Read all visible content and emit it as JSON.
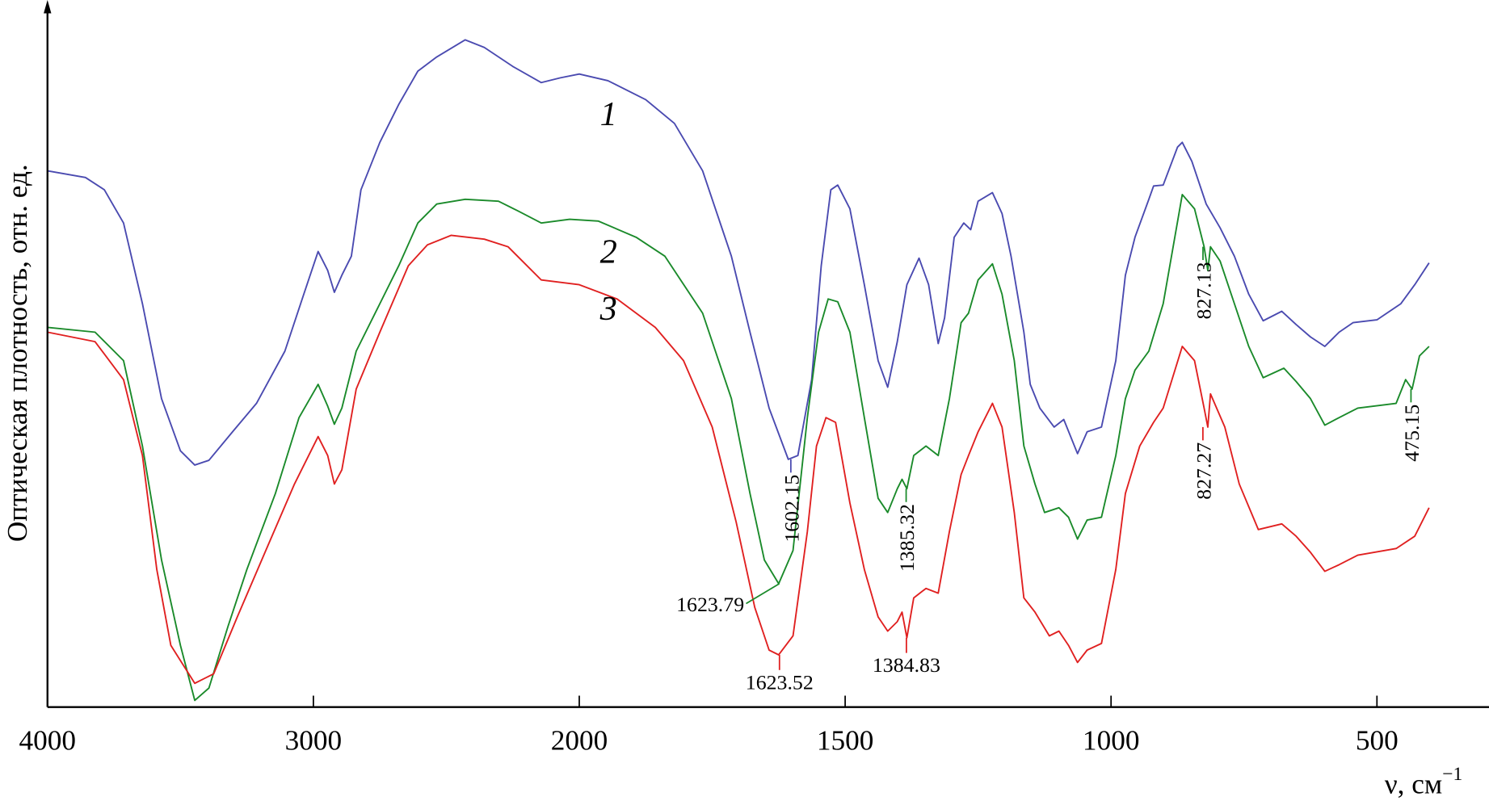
{
  "chart_data": {
    "type": "line",
    "title": "",
    "xlabel": "ν, см",
    "xlabel_sup": "−1",
    "ylabel": "Оптическая плотность, отн. ед.",
    "xlim": [
      4000,
      400
    ],
    "xaxis_break_at": 2000,
    "ylim": [
      0,
      74.5
    ],
    "grid": false,
    "x_ticks": [
      4000,
      3000,
      2000,
      1500,
      1000,
      500
    ],
    "x_tick_labels": [
      "4000",
      "3000",
      "2000",
      "1500",
      "1000",
      "500"
    ],
    "series": [
      {
        "name": "1",
        "color": "#4a4ab0",
        "points": [
          [
            4000,
            56.5
          ],
          [
            3857,
            55.8
          ],
          [
            3786,
            54.5
          ],
          [
            3714,
            51
          ],
          [
            3643,
            42.5
          ],
          [
            3571,
            32.5
          ],
          [
            3500,
            27
          ],
          [
            3446,
            25.5
          ],
          [
            3393,
            26
          ],
          [
            3304,
            29
          ],
          [
            3214,
            32
          ],
          [
            3107,
            37.5
          ],
          [
            3036,
            43.5
          ],
          [
            2982,
            48
          ],
          [
            2946,
            46
          ],
          [
            2921,
            43.7
          ],
          [
            2893,
            45.5
          ],
          [
            2857,
            47.5
          ],
          [
            2821,
            54.5
          ],
          [
            2750,
            59.5
          ],
          [
            2679,
            63.5
          ],
          [
            2607,
            67
          ],
          [
            2536,
            68.5
          ],
          [
            2429,
            70.3
          ],
          [
            2357,
            69.5
          ],
          [
            2250,
            67.5
          ],
          [
            2143,
            65.8
          ],
          [
            2071,
            66.3
          ],
          [
            2000,
            66.7
          ],
          [
            1946,
            66
          ],
          [
            1875,
            64
          ],
          [
            1821,
            61.5
          ],
          [
            1768,
            56.5
          ],
          [
            1714,
            47.5
          ],
          [
            1679,
            39.5
          ],
          [
            1643,
            31.5
          ],
          [
            1607,
            26.1
          ],
          [
            1589,
            26.5
          ],
          [
            1563,
            34.5
          ],
          [
            1545,
            46.5
          ],
          [
            1527,
            54.5
          ],
          [
            1514,
            55
          ],
          [
            1491,
            52.5
          ],
          [
            1464,
            44.5
          ],
          [
            1438,
            36.5
          ],
          [
            1420,
            33.7
          ],
          [
            1402,
            38.5
          ],
          [
            1384,
            44.5
          ],
          [
            1361,
            47.3
          ],
          [
            1343,
            44.5
          ],
          [
            1325,
            38.3
          ],
          [
            1313,
            41
          ],
          [
            1295,
            49.5
          ],
          [
            1277,
            51
          ],
          [
            1264,
            50.3
          ],
          [
            1250,
            53.3
          ],
          [
            1223,
            54.2
          ],
          [
            1205,
            52
          ],
          [
            1188,
            47.5
          ],
          [
            1164,
            39.5
          ],
          [
            1152,
            34
          ],
          [
            1134,
            31.5
          ],
          [
            1107,
            29.5
          ],
          [
            1089,
            30.3
          ],
          [
            1063,
            26.7
          ],
          [
            1045,
            29
          ],
          [
            1018,
            29.5
          ],
          [
            991,
            36.5
          ],
          [
            973,
            45.5
          ],
          [
            955,
            49.5
          ],
          [
            929,
            53.5
          ],
          [
            920,
            54.9
          ],
          [
            902,
            55
          ],
          [
            875,
            59
          ],
          [
            866,
            59.5
          ],
          [
            848,
            57.5
          ],
          [
            821,
            53
          ],
          [
            795,
            50.5
          ],
          [
            768,
            47.5
          ],
          [
            741,
            43.5
          ],
          [
            714,
            40.7
          ],
          [
            679,
            41.7
          ],
          [
            652,
            40.3
          ],
          [
            625,
            39
          ],
          [
            598,
            38
          ],
          [
            571,
            39.5
          ],
          [
            545,
            40.5
          ],
          [
            500,
            40.8
          ],
          [
            455,
            42.5
          ],
          [
            429,
            44.5
          ],
          [
            402,
            46.8
          ]
        ]
      },
      {
        "name": "2",
        "color": "#1a8a2a",
        "points": [
          [
            4000,
            40
          ],
          [
            3821,
            39.5
          ],
          [
            3714,
            36.5
          ],
          [
            3643,
            27.5
          ],
          [
            3571,
            15.5
          ],
          [
            3500,
            6.5
          ],
          [
            3446,
            0.7
          ],
          [
            3393,
            2
          ],
          [
            3321,
            8.5
          ],
          [
            3250,
            14.5
          ],
          [
            3143,
            22.5
          ],
          [
            3054,
            30.5
          ],
          [
            2982,
            34
          ],
          [
            2946,
            31.7
          ],
          [
            2921,
            29.8
          ],
          [
            2893,
            31.5
          ],
          [
            2839,
            37.5
          ],
          [
            2750,
            42.5
          ],
          [
            2679,
            46.5
          ],
          [
            2607,
            51
          ],
          [
            2536,
            53
          ],
          [
            2429,
            53.5
          ],
          [
            2304,
            53.3
          ],
          [
            2232,
            52.3
          ],
          [
            2143,
            51
          ],
          [
            2036,
            51.4
          ],
          [
            1964,
            51.2
          ],
          [
            1893,
            49.5
          ],
          [
            1839,
            47.5
          ],
          [
            1768,
            41.5
          ],
          [
            1714,
            32.5
          ],
          [
            1679,
            22.5
          ],
          [
            1652,
            15.5
          ],
          [
            1625,
            13
          ],
          [
            1598,
            16.5
          ],
          [
            1571,
            30.5
          ],
          [
            1550,
            39.5
          ],
          [
            1532,
            43
          ],
          [
            1514,
            42.7
          ],
          [
            1491,
            39.5
          ],
          [
            1464,
            30.5
          ],
          [
            1438,
            22
          ],
          [
            1420,
            20.5
          ],
          [
            1402,
            23
          ],
          [
            1393,
            24
          ],
          [
            1384,
            23
          ],
          [
            1371,
            26.5
          ],
          [
            1348,
            27.5
          ],
          [
            1325,
            26.5
          ],
          [
            1304,
            32.5
          ],
          [
            1282,
            40.5
          ],
          [
            1268,
            41.5
          ],
          [
            1250,
            45
          ],
          [
            1223,
            46.7
          ],
          [
            1205,
            43.5
          ],
          [
            1182,
            36.5
          ],
          [
            1164,
            27.5
          ],
          [
            1143,
            23.5
          ],
          [
            1125,
            20.5
          ],
          [
            1098,
            21
          ],
          [
            1080,
            20
          ],
          [
            1063,
            17.7
          ],
          [
            1045,
            19.7
          ],
          [
            1018,
            20
          ],
          [
            991,
            26.5
          ],
          [
            973,
            32.5
          ],
          [
            955,
            35.5
          ],
          [
            929,
            37.5
          ],
          [
            902,
            42.5
          ],
          [
            866,
            54
          ],
          [
            843,
            52.5
          ],
          [
            825,
            48.5
          ],
          [
            818,
            46
          ],
          [
            813,
            48.5
          ],
          [
            795,
            47
          ],
          [
            768,
            42.5
          ],
          [
            741,
            38
          ],
          [
            714,
            34.7
          ],
          [
            675,
            35.7
          ],
          [
            652,
            34.3
          ],
          [
            625,
            32.5
          ],
          [
            598,
            29.7
          ],
          [
            571,
            30.5
          ],
          [
            536,
            31.5
          ],
          [
            464,
            32
          ],
          [
            446,
            34.5
          ],
          [
            434,
            33.5
          ],
          [
            420,
            37
          ],
          [
            402,
            38
          ]
        ]
      },
      {
        "name": "3",
        "color": "#e02020",
        "points": [
          [
            4000,
            39.5
          ],
          [
            3821,
            38.5
          ],
          [
            3714,
            34.5
          ],
          [
            3643,
            26.5
          ],
          [
            3589,
            14.5
          ],
          [
            3536,
            6.5
          ],
          [
            3446,
            2.5
          ],
          [
            3375,
            3.5
          ],
          [
            3286,
            9.5
          ],
          [
            3179,
            16.5
          ],
          [
            3071,
            23.5
          ],
          [
            2982,
            28.5
          ],
          [
            2946,
            26.5
          ],
          [
            2921,
            23.5
          ],
          [
            2893,
            25
          ],
          [
            2839,
            33.5
          ],
          [
            2750,
            39.5
          ],
          [
            2643,
            46.5
          ],
          [
            2571,
            48.7
          ],
          [
            2482,
            49.7
          ],
          [
            2357,
            49.3
          ],
          [
            2268,
            48.5
          ],
          [
            2143,
            45
          ],
          [
            2000,
            44.5
          ],
          [
            1929,
            43
          ],
          [
            1857,
            40
          ],
          [
            1804,
            36.5
          ],
          [
            1750,
            29.5
          ],
          [
            1705,
            19.5
          ],
          [
            1670,
            10.5
          ],
          [
            1643,
            6
          ],
          [
            1625,
            5.5
          ],
          [
            1598,
            7.5
          ],
          [
            1571,
            18.5
          ],
          [
            1554,
            27.5
          ],
          [
            1536,
            30.5
          ],
          [
            1518,
            30
          ],
          [
            1491,
            21.5
          ],
          [
            1464,
            14.5
          ],
          [
            1438,
            9.5
          ],
          [
            1420,
            8
          ],
          [
            1402,
            9
          ],
          [
            1393,
            10
          ],
          [
            1384,
            7.3
          ],
          [
            1371,
            11.5
          ],
          [
            1348,
            12.5
          ],
          [
            1325,
            12
          ],
          [
            1304,
            18.5
          ],
          [
            1282,
            24.5
          ],
          [
            1268,
            26.5
          ],
          [
            1250,
            29
          ],
          [
            1223,
            32
          ],
          [
            1205,
            29.5
          ],
          [
            1182,
            20.5
          ],
          [
            1164,
            11.5
          ],
          [
            1143,
            10
          ],
          [
            1116,
            7.5
          ],
          [
            1098,
            8
          ],
          [
            1080,
            6.5
          ],
          [
            1063,
            4.7
          ],
          [
            1045,
            6
          ],
          [
            1018,
            6.7
          ],
          [
            991,
            14.5
          ],
          [
            973,
            22.5
          ],
          [
            946,
            27.5
          ],
          [
            920,
            30
          ],
          [
            902,
            31.5
          ],
          [
            866,
            38
          ],
          [
            843,
            36.5
          ],
          [
            825,
            31.5
          ],
          [
            818,
            29.5
          ],
          [
            813,
            33
          ],
          [
            786,
            29.5
          ],
          [
            759,
            23.5
          ],
          [
            723,
            18.7
          ],
          [
            679,
            19.3
          ],
          [
            652,
            18
          ],
          [
            625,
            16.3
          ],
          [
            598,
            14.3
          ],
          [
            571,
            15
          ],
          [
            536,
            16
          ],
          [
            464,
            16.7
          ],
          [
            429,
            18
          ],
          [
            402,
            21
          ]
        ]
      }
    ],
    "curve_labels": [
      {
        "text": "1",
        "x": 1945,
        "y": 62.5
      },
      {
        "text": "2",
        "x": 1945,
        "y": 48
      },
      {
        "text": "3",
        "x": 1945,
        "y": 42
      }
    ],
    "annotations": [
      {
        "text": "1602.15",
        "series": "1",
        "x": 1602.15,
        "y": 26.1,
        "style": "vertical"
      },
      {
        "text": "1623.79",
        "series": "2",
        "x": 1623.79,
        "y": 13,
        "style": "leader"
      },
      {
        "text": "1385.32",
        "series": "2",
        "x": 1385.32,
        "y": 23,
        "style": "vertical"
      },
      {
        "text": "827.13",
        "series": "2",
        "x": 827.13,
        "y": 48.5,
        "style": "vertical"
      },
      {
        "text": "475.15",
        "series": "2",
        "x": 436,
        "y": 33.5,
        "style": "vertical"
      },
      {
        "text": "1623.52",
        "series": "3",
        "x": 1623.52,
        "y": 5.5,
        "style": "below"
      },
      {
        "text": "1384.83",
        "series": "3",
        "x": 1384.83,
        "y": 7.3,
        "style": "below"
      },
      {
        "text": "827.27",
        "series": "3",
        "x": 827.27,
        "y": 29.5,
        "style": "vertical"
      }
    ]
  }
}
